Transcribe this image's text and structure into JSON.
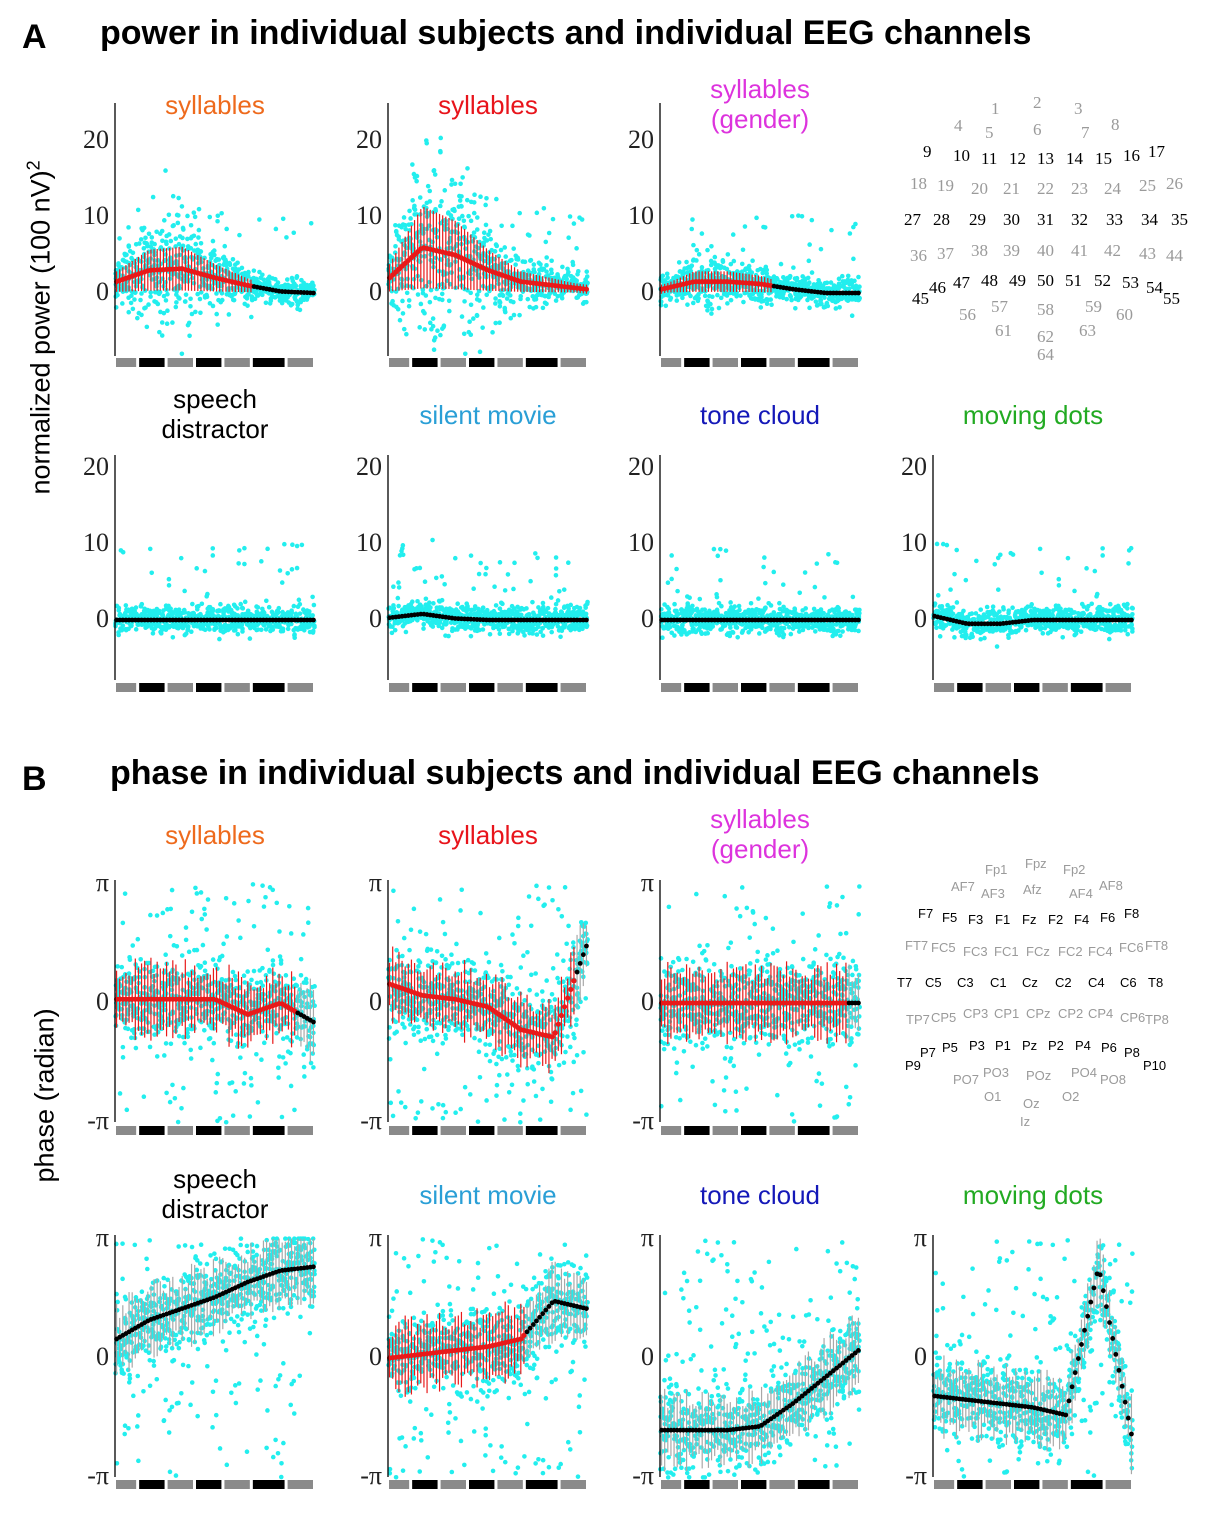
{
  "sections": [
    {
      "letter": "A",
      "title": "power in individual subjects and individual EEG channels",
      "ylabel": "normalized power (100 nV)",
      "ylabel_sup": "2"
    },
    {
      "letter": "B",
      "title": "phase in individual subjects and individual EEG channels",
      "ylabel": "phase (radian)"
    }
  ],
  "colors": {
    "syllables_orange": "#ee6a1c",
    "syllables_red": "#e8141b",
    "syllables_gender": "#dd33dd",
    "speech_distractor": "#000000",
    "silent_movie": "#2a9fd6",
    "tone_cloud": "#1418b8",
    "moving_dots": "#22aa22",
    "subject_points": "#22eeee",
    "mean_significant": "#e81a1a",
    "mean_nonsignificant": "#000000",
    "channel_significant": "#000000",
    "channel_nonsignificant": "#9a9a9a"
  },
  "power_ticks": [
    "20",
    "10",
    "0"
  ],
  "phase_ticks": [
    "π",
    "0",
    "-π"
  ],
  "chart_data": [
    {
      "type": "scatter",
      "section": "A",
      "title": [
        "syllables"
      ],
      "ylabel": "normalized power (100 nV)2",
      "yticks": [
        0,
        10,
        20
      ],
      "ylim": [
        -8,
        25
      ],
      "n_channels": 64,
      "mean_by_channel_segment": [
        1.5,
        3.0,
        3.2,
        2.0,
        1.0,
        0.2,
        0.0
      ],
      "significant_channels": "1-44"
    },
    {
      "type": "scatter",
      "section": "A",
      "title": [
        "syllables"
      ],
      "ylabel": "normalized power (100 nV)2",
      "yticks": [
        0,
        10,
        20
      ],
      "ylim": [
        -8,
        25
      ],
      "n_channels": 64,
      "mean_by_channel_segment": [
        2.0,
        6.0,
        5.0,
        3.0,
        1.5,
        1.0,
        0.5
      ],
      "significant_channels": "1-64"
    },
    {
      "type": "scatter",
      "section": "A",
      "title": [
        "syllables",
        "(gender)"
      ],
      "ylabel": "normalized power (100 nV)2",
      "yticks": [
        0,
        10,
        20
      ],
      "ylim": [
        -8,
        25
      ],
      "n_channels": 64,
      "mean_by_channel_segment": [
        0.5,
        1.5,
        1.5,
        1.2,
        0.5,
        0.0,
        0.0
      ],
      "significant_channels": "1-36"
    },
    {
      "type": "scatter",
      "section": "A",
      "title": [
        "speech",
        "distractor"
      ],
      "ylabel": "normalized power (100 nV)2",
      "yticks": [
        0,
        10,
        20
      ],
      "ylim": [
        -8,
        25
      ],
      "n_channels": 64,
      "mean_by_channel_segment": [
        0,
        0,
        0,
        0,
        0,
        0,
        0
      ],
      "significant_channels": "none"
    },
    {
      "type": "scatter",
      "section": "A",
      "title": [
        "silent movie"
      ],
      "ylabel": "normalized power (100 nV)2",
      "yticks": [
        0,
        10,
        20
      ],
      "ylim": [
        -8,
        25
      ],
      "n_channels": 64,
      "mean_by_channel_segment": [
        0.3,
        0.8,
        0.2,
        0,
        0,
        0,
        0
      ],
      "significant_channels": "none"
    },
    {
      "type": "scatter",
      "section": "A",
      "title": [
        "tone cloud"
      ],
      "ylabel": "normalized power (100 nV)2",
      "yticks": [
        0,
        10,
        20
      ],
      "ylim": [
        -8,
        25
      ],
      "n_channels": 64,
      "mean_by_channel_segment": [
        0,
        0,
        0,
        0,
        0,
        0,
        0
      ],
      "significant_channels": "none"
    },
    {
      "type": "scatter",
      "section": "A",
      "title": [
        "moving dots"
      ],
      "ylabel": "normalized power (100 nV)2",
      "yticks": [
        0,
        10,
        20
      ],
      "ylim": [
        -8,
        25
      ],
      "n_channels": 64,
      "mean_by_channel_segment": [
        0.5,
        -0.5,
        -0.5,
        0,
        0,
        0,
        0
      ],
      "significant_channels": "none"
    },
    {
      "type": "scatter",
      "section": "B",
      "title": [
        "syllables"
      ],
      "ylabel": "phase (radian)",
      "yticks": [
        "-π",
        "0",
        "π"
      ],
      "ylim": [
        -3.1416,
        3.1416
      ],
      "n_channels": 64,
      "mean_by_channel_segment": [
        0.1,
        0.1,
        0.1,
        0.1,
        -0.3,
        0.0,
        -0.5
      ],
      "significant_channels": "1-58"
    },
    {
      "type": "scatter",
      "section": "B",
      "title": [
        "syllables"
      ],
      "ylabel": "phase (radian)",
      "yticks": [
        "-π",
        "0",
        "π"
      ],
      "ylim": [
        -3.1416,
        3.1416
      ],
      "n_channels": 64,
      "mean_by_channel_segment": [
        0.5,
        0.2,
        0.1,
        -0.1,
        -0.7,
        -0.9,
        1.5
      ],
      "significant_channels": "1-60"
    },
    {
      "type": "scatter",
      "section": "B",
      "title": [
        "syllables",
        "(gender)"
      ],
      "ylabel": "phase (radian)",
      "yticks": [
        "-π",
        "0",
        "π"
      ],
      "ylim": [
        -3.1416,
        3.1416
      ],
      "n_channels": 64,
      "mean_by_channel_segment": [
        0,
        0,
        0,
        0,
        0,
        0,
        0
      ],
      "significant_channels": "1-60"
    },
    {
      "type": "scatter",
      "section": "B",
      "title": [
        "speech",
        "distractor"
      ],
      "ylabel": "phase (radian)",
      "yticks": [
        "-π",
        "0",
        "π"
      ],
      "ylim": [
        -3.1416,
        3.1416
      ],
      "n_channels": 64,
      "mean_by_channel_segment": [
        0.5,
        1.0,
        1.3,
        1.6,
        2.0,
        2.3,
        2.4
      ],
      "significant_channels": "none"
    },
    {
      "type": "scatter",
      "section": "B",
      "title": [
        "silent movie"
      ],
      "ylabel": "phase (radian)",
      "yticks": [
        "-π",
        "0",
        "π"
      ],
      "ylim": [
        -3.1416,
        3.1416
      ],
      "n_channels": 64,
      "mean_by_channel_segment": [
        0.0,
        0.1,
        0.2,
        0.3,
        0.5,
        1.5,
        1.3
      ],
      "significant_channels": "1-44"
    },
    {
      "type": "scatter",
      "section": "B",
      "title": [
        "tone cloud"
      ],
      "ylabel": "phase (radian)",
      "yticks": [
        "-π",
        "0",
        "π"
      ],
      "ylim": [
        -3.1416,
        3.1416
      ],
      "n_channels": 64,
      "mean_by_channel_segment": [
        -1.9,
        -1.9,
        -1.9,
        -1.8,
        -1.2,
        -0.5,
        0.2
      ],
      "significant_channels": "none"
    },
    {
      "type": "scatter",
      "section": "B",
      "title": [
        "moving dots"
      ],
      "ylabel": "phase (radian)",
      "yticks": [
        "-π",
        "0",
        "π"
      ],
      "ylim": [
        -3.1416,
        3.1416
      ],
      "n_channels": 64,
      "mean_by_channel_segment": [
        -1.0,
        -1.1,
        -1.2,
        -1.3,
        -1.5,
        2.4,
        -2.0
      ],
      "significant_channels": "none"
    }
  ],
  "channel_map_numbers": [
    {
      "label": "1",
      "sig": false
    },
    {
      "label": "2",
      "sig": false
    },
    {
      "label": "3",
      "sig": false
    },
    {
      "label": "4",
      "sig": false
    },
    {
      "label": "5",
      "sig": false
    },
    {
      "label": "6",
      "sig": false
    },
    {
      "label": "7",
      "sig": false
    },
    {
      "label": "8",
      "sig": false
    },
    {
      "label": "9",
      "sig": true
    },
    {
      "label": "10",
      "sig": true
    },
    {
      "label": "11",
      "sig": true
    },
    {
      "label": "12",
      "sig": true
    },
    {
      "label": "13",
      "sig": true
    },
    {
      "label": "14",
      "sig": true
    },
    {
      "label": "15",
      "sig": true
    },
    {
      "label": "16",
      "sig": true
    },
    {
      "label": "17",
      "sig": true
    },
    {
      "label": "18",
      "sig": false
    },
    {
      "label": "19",
      "sig": false
    },
    {
      "label": "20",
      "sig": false
    },
    {
      "label": "21",
      "sig": false
    },
    {
      "label": "22",
      "sig": false
    },
    {
      "label": "23",
      "sig": false
    },
    {
      "label": "24",
      "sig": false
    },
    {
      "label": "25",
      "sig": false
    },
    {
      "label": "26",
      "sig": false
    },
    {
      "label": "27",
      "sig": true
    },
    {
      "label": "28",
      "sig": true
    },
    {
      "label": "29",
      "sig": true
    },
    {
      "label": "30",
      "sig": true
    },
    {
      "label": "31",
      "sig": true
    },
    {
      "label": "32",
      "sig": true
    },
    {
      "label": "33",
      "sig": true
    },
    {
      "label": "34",
      "sig": true
    },
    {
      "label": "35",
      "sig": true
    },
    {
      "label": "36",
      "sig": false
    },
    {
      "label": "37",
      "sig": false
    },
    {
      "label": "38",
      "sig": false
    },
    {
      "label": "39",
      "sig": false
    },
    {
      "label": "40",
      "sig": false
    },
    {
      "label": "41",
      "sig": false
    },
    {
      "label": "42",
      "sig": false
    },
    {
      "label": "43",
      "sig": false
    },
    {
      "label": "44",
      "sig": false
    },
    {
      "label": "45",
      "sig": true
    },
    {
      "label": "46",
      "sig": true
    },
    {
      "label": "47",
      "sig": true
    },
    {
      "label": "48",
      "sig": true
    },
    {
      "label": "49",
      "sig": true
    },
    {
      "label": "50",
      "sig": true
    },
    {
      "label": "51",
      "sig": true
    },
    {
      "label": "52",
      "sig": true
    },
    {
      "label": "53",
      "sig": true
    },
    {
      "label": "54",
      "sig": true
    },
    {
      "label": "55",
      "sig": true
    },
    {
      "label": "56",
      "sig": false
    },
    {
      "label": "57",
      "sig": false
    },
    {
      "label": "58",
      "sig": false
    },
    {
      "label": "59",
      "sig": false
    },
    {
      "label": "60",
      "sig": false
    },
    {
      "label": "61",
      "sig": false
    },
    {
      "label": "62",
      "sig": false
    },
    {
      "label": "63",
      "sig": false
    },
    {
      "label": "64",
      "sig": false
    }
  ],
  "channel_map_names": [
    {
      "label": "Fp1",
      "sig": false
    },
    {
      "label": "Fpz",
      "sig": false
    },
    {
      "label": "Fp2",
      "sig": false
    },
    {
      "label": "AF7",
      "sig": false
    },
    {
      "label": "AF3",
      "sig": false
    },
    {
      "label": "Afz",
      "sig": false
    },
    {
      "label": "AF4",
      "sig": false
    },
    {
      "label": "AF8",
      "sig": false
    },
    {
      "label": "F7",
      "sig": true
    },
    {
      "label": "F5",
      "sig": true
    },
    {
      "label": "F3",
      "sig": true
    },
    {
      "label": "F1",
      "sig": true
    },
    {
      "label": "Fz",
      "sig": true
    },
    {
      "label": "F2",
      "sig": true
    },
    {
      "label": "F4",
      "sig": true
    },
    {
      "label": "F6",
      "sig": true
    },
    {
      "label": "F8",
      "sig": true
    },
    {
      "label": "FT7",
      "sig": false
    },
    {
      "label": "FC5",
      "sig": false
    },
    {
      "label": "FC3",
      "sig": false
    },
    {
      "label": "FC1",
      "sig": false
    },
    {
      "label": "FCz",
      "sig": false
    },
    {
      "label": "FC2",
      "sig": false
    },
    {
      "label": "FC4",
      "sig": false
    },
    {
      "label": "FC6",
      "sig": false
    },
    {
      "label": "FT8",
      "sig": false
    },
    {
      "label": "T7",
      "sig": true
    },
    {
      "label": "C5",
      "sig": true
    },
    {
      "label": "C3",
      "sig": true
    },
    {
      "label": "C1",
      "sig": true
    },
    {
      "label": "Cz",
      "sig": true
    },
    {
      "label": "C2",
      "sig": true
    },
    {
      "label": "C4",
      "sig": true
    },
    {
      "label": "C6",
      "sig": true
    },
    {
      "label": "T8",
      "sig": true
    },
    {
      "label": "TP7",
      "sig": false
    },
    {
      "label": "CP5",
      "sig": false
    },
    {
      "label": "CP3",
      "sig": false
    },
    {
      "label": "CP1",
      "sig": false
    },
    {
      "label": "CPz",
      "sig": false
    },
    {
      "label": "CP2",
      "sig": false
    },
    {
      "label": "CP4",
      "sig": false
    },
    {
      "label": "CP6",
      "sig": false
    },
    {
      "label": "TP8",
      "sig": false
    },
    {
      "label": "P9",
      "sig": true
    },
    {
      "label": "P7",
      "sig": true
    },
    {
      "label": "P5",
      "sig": true
    },
    {
      "label": "P3",
      "sig": true
    },
    {
      "label": "P1",
      "sig": true
    },
    {
      "label": "Pz",
      "sig": true
    },
    {
      "label": "P2",
      "sig": true
    },
    {
      "label": "P4",
      "sig": true
    },
    {
      "label": "P6",
      "sig": true
    },
    {
      "label": "P8",
      "sig": true
    },
    {
      "label": "P10",
      "sig": true
    },
    {
      "label": "PO7",
      "sig": false
    },
    {
      "label": "PO3",
      "sig": false
    },
    {
      "label": "POz",
      "sig": false
    },
    {
      "label": "PO4",
      "sig": false
    },
    {
      "label": "PO8",
      "sig": false
    },
    {
      "label": "O1",
      "sig": false
    },
    {
      "label": "Oz",
      "sig": false
    },
    {
      "label": "O2",
      "sig": false
    },
    {
      "label": "Iz",
      "sig": false
    }
  ]
}
